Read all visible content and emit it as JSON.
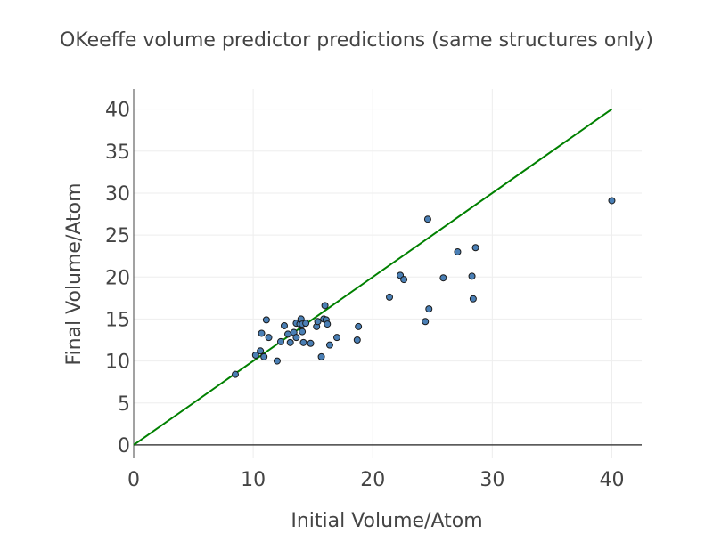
{
  "chart_data": {
    "type": "scatter",
    "title": "OKeeffe volume predictor predictions (same structures only)",
    "xlabel": "Initial Volume/Atom",
    "ylabel": "Final Volume/Atom",
    "xlim": [
      0,
      42.5
    ],
    "ylim": [
      -1.6,
      42.4
    ],
    "xticks": [
      0,
      10,
      20,
      30,
      40
    ],
    "yticks": [
      0,
      5,
      10,
      15,
      20,
      25,
      30,
      35,
      40
    ],
    "grid": true,
    "series": [
      {
        "mode": "markers",
        "color": "#4a7fb5",
        "points": [
          [
            8.5,
            8.4
          ],
          [
            10.2,
            10.7
          ],
          [
            10.6,
            11.2
          ],
          [
            10.9,
            10.5
          ],
          [
            10.7,
            13.3
          ],
          [
            11.1,
            14.9
          ],
          [
            11.3,
            12.8
          ],
          [
            12.0,
            10.0
          ],
          [
            12.3,
            12.3
          ],
          [
            12.6,
            14.2
          ],
          [
            12.9,
            13.2
          ],
          [
            13.1,
            12.2
          ],
          [
            13.4,
            13.4
          ],
          [
            13.6,
            12.8
          ],
          [
            13.6,
            14.5
          ],
          [
            13.9,
            14.4
          ],
          [
            14.0,
            15.0
          ],
          [
            14.1,
            14.4
          ],
          [
            14.1,
            13.5
          ],
          [
            14.2,
            12.2
          ],
          [
            14.4,
            14.5
          ],
          [
            14.8,
            12.1
          ],
          [
            15.3,
            14.1
          ],
          [
            15.4,
            14.7
          ],
          [
            15.7,
            10.5
          ],
          [
            15.9,
            15.0
          ],
          [
            16.0,
            16.6
          ],
          [
            16.1,
            14.9
          ],
          [
            16.2,
            14.4
          ],
          [
            16.4,
            11.9
          ],
          [
            17.0,
            12.8
          ],
          [
            18.7,
            12.5
          ],
          [
            18.8,
            14.1
          ],
          [
            21.4,
            17.6
          ],
          [
            22.3,
            20.2
          ],
          [
            22.6,
            19.7
          ],
          [
            24.4,
            14.7
          ],
          [
            24.6,
            26.9
          ],
          [
            24.7,
            16.2
          ],
          [
            25.9,
            19.9
          ],
          [
            27.1,
            23.0
          ],
          [
            28.3,
            20.1
          ],
          [
            28.4,
            17.4
          ],
          [
            28.6,
            23.5
          ],
          [
            40.0,
            29.1
          ]
        ]
      },
      {
        "mode": "line",
        "color": "#008000",
        "points": [
          [
            0,
            0
          ],
          [
            40,
            40
          ]
        ]
      }
    ]
  }
}
